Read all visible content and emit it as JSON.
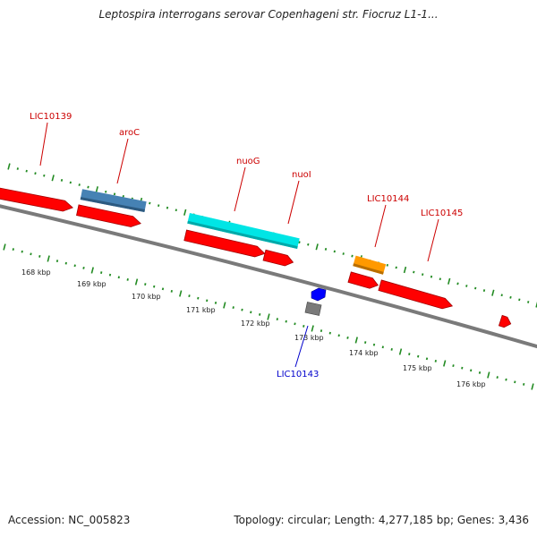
{
  "title": "Leptospira interrogans serovar Copenhageni str. Fiocruz L1-1...",
  "footer": {
    "accession": "Accession: NC_005823",
    "summary": "Topology: circular; Length: 4,277,185 bp; Genes: 3,436"
  },
  "colors": {
    "cds_forward": "#ff0000",
    "backbone": "#808080",
    "tick": "#228b22",
    "label_red": "#cc0000",
    "label_blue": "#0000cc",
    "gene_steelblue": "#4682b4",
    "gene_cyan": "#00e5e5",
    "gene_orange": "#ff9900",
    "gene_gray": "#808080",
    "gene_blue": "#0000ff"
  },
  "scale_labels": [
    "168 kbp",
    "169 kbp",
    "170 kbp",
    "171 kbp",
    "172 kbp",
    "173 kbp",
    "174 kbp",
    "175 kbp",
    "176 kbp"
  ],
  "gene_labels": [
    {
      "name": "LIC10139",
      "color": "red"
    },
    {
      "name": "aroC",
      "color": "red"
    },
    {
      "name": "nuoG",
      "color": "red"
    },
    {
      "name": "nuoI",
      "color": "red"
    },
    {
      "name": "LIC10144",
      "color": "red"
    },
    {
      "name": "LIC10145",
      "color": "red"
    },
    {
      "name": "LIC10143",
      "color": "blue"
    }
  ]
}
